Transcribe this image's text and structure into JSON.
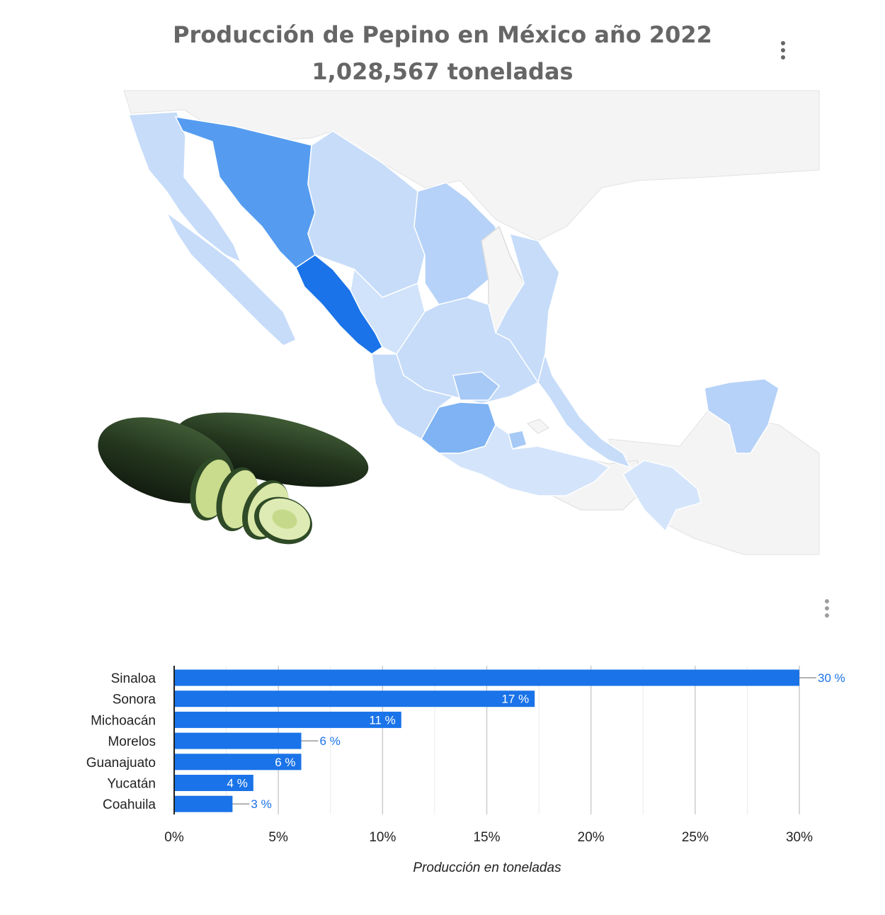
{
  "header": {
    "title_line1": "Producción de Pepino en México año 2022",
    "title_line2": "1,028,567 toneladas"
  },
  "menus": {
    "map_menu_icon": "more-vert-icon",
    "chart_menu_icon": "more-vert-icon"
  },
  "map": {
    "highlight_colors": {
      "sinaloa": "#1a73e8",
      "sonora": "#559cf0",
      "michoacan": "#7fb3f3",
      "medium": "#a6c9f6",
      "light": "#c6dcf9",
      "none": "#f5f5f5"
    }
  },
  "image": {
    "icon": "cucumber-image"
  },
  "chart_data": {
    "type": "bar",
    "orientation": "horizontal",
    "categories": [
      "Sinaloa",
      "Sonora",
      "Michoacán",
      "Morelos",
      "Guanajuato",
      "Yucatán",
      "Coahuila"
    ],
    "values": [
      30,
      17.3,
      10.9,
      6.1,
      6.1,
      3.8,
      2.8
    ],
    "data_labels": [
      "30 %",
      "17 %",
      "11 %",
      "6 %",
      "6 %",
      "4 %",
      "3 %"
    ],
    "label_inside": [
      false,
      true,
      true,
      false,
      true,
      true,
      false
    ],
    "xlim": [
      0,
      30
    ],
    "xticks": [
      0,
      5,
      10,
      15,
      20,
      25,
      30
    ],
    "xtick_labels": [
      "0%",
      "5%",
      "10%",
      "15%",
      "20%",
      "25%",
      "30%"
    ],
    "xlabel": "Producción en toneladas",
    "ylabel": "",
    "grid": true,
    "bar_color": "#1a73e8",
    "label_color_outside": "#1a73e8",
    "label_color_inside": "#ffffff"
  }
}
